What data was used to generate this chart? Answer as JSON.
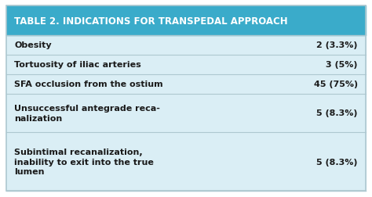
{
  "title_part1": "T",
  "title_part2": "able ",
  "title_part3": "2. I",
  "title_part4": "ndications for ",
  "title_part5": "T",
  "title_part6": "ranspedal ",
  "title_part7": "A",
  "title_part8": "pproach",
  "title_display": "TABLE 2. INDICATIONS FOR TRANSPEDAL APPROACH",
  "title_bg": "#3aabca",
  "title_text_color": "#ffffff",
  "rows": [
    {
      "label": "Obesity",
      "value": "2 (3.3%)",
      "lines": 1
    },
    {
      "label": "Tortuosity of iliac arteries",
      "value": "3 (5%)",
      "lines": 1
    },
    {
      "label": "SFA occlusion from the ostium",
      "value": "45 (75%)",
      "lines": 1
    },
    {
      "label": "Unsuccessful antegrade reca-\nnalization",
      "value": "5 (8.3%)",
      "lines": 2
    },
    {
      "label": "Subintimal recanalization,\ninability to exit into the true\nlumen",
      "value": "5 (8.3%)",
      "lines": 3
    }
  ],
  "table_bg": "#daeef5",
  "text_color": "#1a1a1a",
  "divider_color": "#aec8d0",
  "outer_border_color": "#aec8d0",
  "figsize": [
    4.74,
    2.53
  ],
  "dpi": 100,
  "font_size_title": 8.5,
  "font_size_body": 8.0
}
